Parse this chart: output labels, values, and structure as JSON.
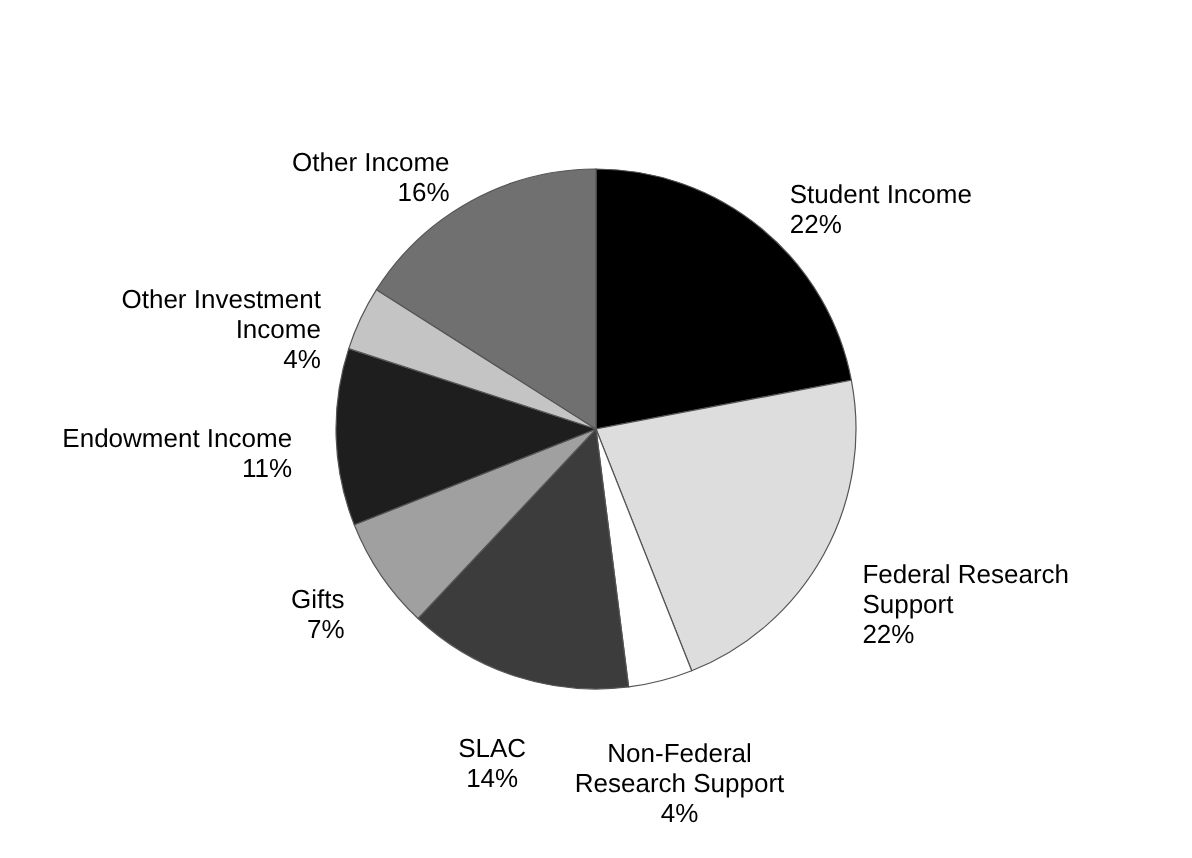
{
  "chart_data": {
    "type": "pie",
    "categories": [
      "Student Income",
      "Federal Research Support",
      "Non-Federal Research Support",
      "SLAC",
      "Gifts",
      "Endowment Income",
      "Other Investment Income",
      "Other Income"
    ],
    "values": [
      22,
      22,
      4,
      14,
      7,
      11,
      4,
      16
    ],
    "value_labels": [
      "22%",
      "22%",
      "4%",
      "14%",
      "7%",
      "11%",
      "4%",
      "16%"
    ],
    "colors": [
      "#000000",
      "#dddddd",
      "#ffffff",
      "#3c3c3c",
      "#a0a0a0",
      "#1e1e1e",
      "#c4c4c4",
      "#707070"
    ],
    "legend": false
  }
}
